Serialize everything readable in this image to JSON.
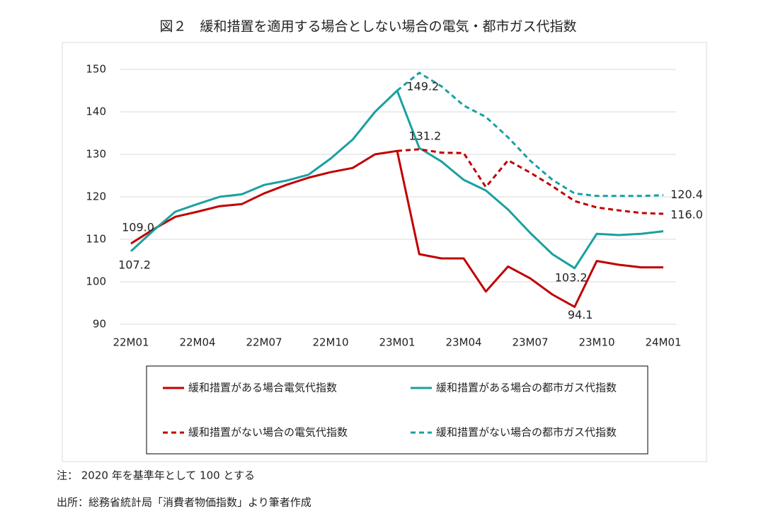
{
  "chart_data": {
    "type": "line",
    "title": "図２　緩和措置を適用する場合としない場合の電気・都市ガス代指数",
    "categories": [
      "22M01",
      null,
      null,
      "22M04",
      null,
      null,
      "22M07",
      null,
      null,
      "22M10",
      null,
      null,
      "23M01",
      null,
      null,
      "23M04",
      null,
      null,
      "23M07",
      null,
      null,
      "23M10",
      null,
      null,
      "24M01"
    ],
    "ylim": [
      90,
      150
    ],
    "yticks": [
      90,
      100,
      110,
      120,
      130,
      140,
      150
    ],
    "grid": true,
    "series": [
      {
        "name": "緩和措置がある場合電気代指数",
        "color": "#c00000",
        "dashed": false,
        "values": [
          109.0,
          112.3,
          115.3,
          116.5,
          117.8,
          118.3,
          120.8,
          122.8,
          124.5,
          125.8,
          126.8,
          130.0,
          130.8,
          106.5,
          105.5,
          105.5,
          97.7,
          103.6,
          100.8,
          97.0,
          94.1,
          104.9,
          104.0,
          103.4,
          103.4
        ],
        "value_labels": [
          "109.0",
          null,
          null,
          null,
          null,
          null,
          null,
          null,
          null,
          null,
          null,
          null,
          null,
          null,
          null,
          null,
          null,
          null,
          null,
          null,
          "94.1",
          null,
          null,
          null,
          null
        ]
      },
      {
        "name": "緩和措置がある場合の都市ガス代指数",
        "color": "#1aa0a0",
        "dashed": false,
        "values": [
          107.2,
          112.0,
          116.5,
          118.3,
          120.0,
          120.6,
          122.8,
          123.8,
          125.2,
          129.0,
          133.5,
          140.0,
          145.0,
          131.5,
          128.3,
          124.0,
          121.5,
          117.0,
          111.5,
          106.5,
          103.2,
          111.3,
          111.0,
          111.3,
          111.9
        ],
        "value_labels": [
          "107.2",
          null,
          null,
          null,
          null,
          null,
          null,
          null,
          null,
          null,
          null,
          null,
          null,
          null,
          null,
          null,
          null,
          null,
          null,
          null,
          "103.2",
          null,
          null,
          null,
          null
        ]
      },
      {
        "name": "緩和措置がない場合の電気代指数",
        "color": "#c00000",
        "dashed": true,
        "values": [
          null,
          null,
          null,
          null,
          null,
          null,
          null,
          null,
          null,
          null,
          null,
          null,
          130.8,
          131.2,
          130.4,
          130.3,
          122.3,
          128.6,
          125.7,
          122.5,
          119.0,
          117.5,
          116.8,
          116.2,
          116.0
        ],
        "value_labels": [
          null,
          null,
          null,
          null,
          null,
          null,
          null,
          null,
          null,
          null,
          null,
          null,
          null,
          "131.2",
          null,
          null,
          null,
          null,
          null,
          null,
          null,
          null,
          null,
          null,
          "116.0"
        ]
      },
      {
        "name": "緩和措置がない場合の都市ガス代指数",
        "color": "#1aa0a0",
        "dashed": true,
        "values": [
          null,
          null,
          null,
          null,
          null,
          null,
          null,
          null,
          null,
          null,
          null,
          null,
          145.0,
          149.2,
          146.0,
          141.5,
          138.8,
          134.0,
          128.5,
          124.0,
          120.8,
          120.2,
          120.2,
          120.2,
          120.4
        ],
        "value_labels": [
          null,
          null,
          null,
          null,
          null,
          null,
          null,
          null,
          null,
          null,
          null,
          null,
          null,
          "149.2",
          null,
          null,
          null,
          null,
          null,
          null,
          null,
          null,
          null,
          null,
          "120.4"
        ]
      }
    ],
    "notes": [
      "注： 2020 年を基準年として 100 とする",
      "出所：総務省統計局「消費者物価指数」より筆者作成"
    ]
  }
}
